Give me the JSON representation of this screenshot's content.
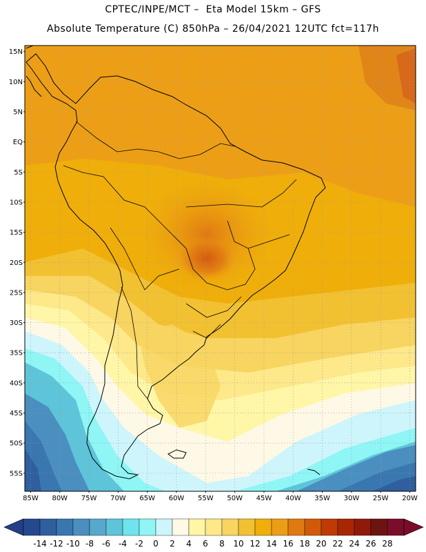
{
  "header": {
    "line1": "CPTEC/INPE/MCT –  Eta Model 15km – GFS",
    "line2": "Absolute Temperature (C) 850hPa – 26/04/2021 12UTC fct=117h"
  },
  "map": {
    "lat_labels": [
      "15N",
      "10N",
      "5N",
      "EQ",
      "5S",
      "10S",
      "15S",
      "20S",
      "25S",
      "30S",
      "35S",
      "40S",
      "45S",
      "50S",
      "55S"
    ],
    "lon_labels": [
      "85W",
      "80W",
      "75W",
      "70W",
      "65W",
      "60W",
      "55W",
      "50W",
      "45W",
      "40W",
      "35W",
      "30W",
      "25W",
      "20W"
    ],
    "lat_range": [
      -58,
      16
    ],
    "lon_range": [
      -86,
      -19
    ]
  },
  "colorbar": {
    "labels": [
      "-14",
      "-12",
      "-10",
      "-8",
      "-6",
      "-4",
      "-2",
      "0",
      "2",
      "4",
      "6",
      "8",
      "10",
      "12",
      "14",
      "16",
      "18",
      "20",
      "22",
      "24",
      "26",
      "28"
    ],
    "colors": [
      "#25488f",
      "#2f5f9f",
      "#3a77b0",
      "#4a8fc0",
      "#58a8cc",
      "#5ec4d9",
      "#6fe3ee",
      "#8ff5f5",
      "#cdf5fb",
      "#fef8e6",
      "#fff6a8",
      "#fde88a",
      "#f8d460",
      "#f2c132",
      "#efae0a",
      "#ec9d16",
      "#e07a10",
      "#d15a08",
      "#bf3a05",
      "#a82604",
      "#8f1a0c",
      "#6e1410",
      "#7a0d2a"
    ],
    "under_color": "#243f88",
    "over_color": "#7a0d2a"
  }
}
